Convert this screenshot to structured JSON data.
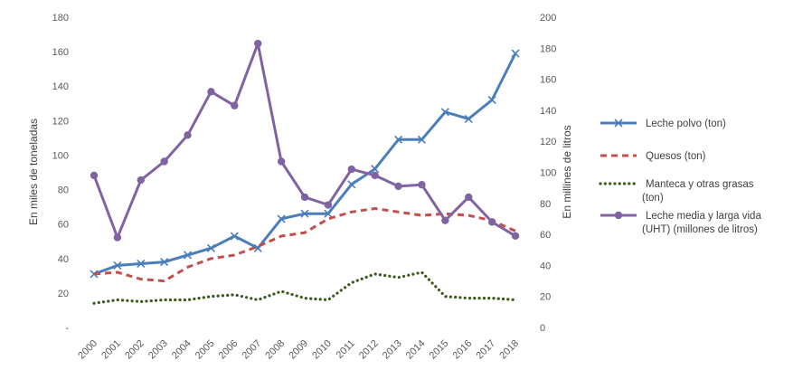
{
  "chart_data": {
    "type": "line",
    "x": [
      "2000",
      "2001",
      "2002",
      "2003",
      "2004",
      "2005",
      "2006",
      "2007",
      "2008",
      "2009",
      "2010",
      "2011",
      "2012",
      "2013",
      "2014",
      "2015",
      "2016",
      "2017",
      "2018"
    ],
    "left_axis": {
      "label": "En miles de toneladas",
      "ylim": [
        0,
        180
      ],
      "ticks": [
        "-",
        "20",
        "40",
        "60",
        "80",
        "100",
        "120",
        "140",
        "160",
        "180"
      ]
    },
    "right_axis": {
      "label": "En millines de litros",
      "ylim": [
        0,
        200
      ],
      "ticks": [
        "0",
        "20",
        "40",
        "60",
        "80",
        "100",
        "120",
        "140",
        "160",
        "180",
        "200"
      ]
    },
    "grid": false,
    "legend_position": "right",
    "series": [
      {
        "name": "Leche polvo (ton)",
        "axis": "left",
        "color": "#4a7ebb",
        "style": "solid-x",
        "values": [
          31,
          36,
          37,
          38,
          42,
          46,
          53,
          46,
          63,
          66,
          66,
          83,
          92,
          109,
          109,
          125,
          121,
          132,
          159
        ]
      },
      {
        "name": "Quesos (ton)",
        "axis": "left",
        "color": "#c0504d",
        "style": "dashed",
        "values": [
          31,
          32,
          28,
          27,
          35,
          40,
          42,
          47,
          53,
          55,
          63,
          67,
          69,
          67,
          65,
          66,
          65,
          62,
          56
        ]
      },
      {
        "name": "Manteca y otras grasas (ton)",
        "axis": "left",
        "color": "#3c5a1e",
        "style": "dotted",
        "values": [
          14,
          16,
          15,
          16,
          16,
          18,
          19,
          16,
          21,
          17,
          16,
          26,
          31,
          29,
          32,
          18,
          17,
          17,
          16
        ]
      },
      {
        "name": "Leche media y larga vida (UHT) (millones de litros)",
        "axis": "right",
        "color": "#8064a2",
        "style": "solid-circle",
        "values": [
          98,
          58,
          95,
          107,
          124,
          152,
          143,
          183,
          107,
          84,
          79,
          102,
          98,
          91,
          92,
          69,
          84,
          68,
          59
        ]
      }
    ]
  },
  "legend": {
    "items": [
      {
        "lines": [
          "Leche polvo (ton)"
        ]
      },
      {
        "lines": [
          "Quesos (ton)"
        ]
      },
      {
        "lines": [
          "Manteca y otras grasas",
          "(ton)"
        ]
      },
      {
        "lines": [
          "Leche media y larga vida",
          "(UHT) (millones de litros)"
        ]
      }
    ]
  }
}
